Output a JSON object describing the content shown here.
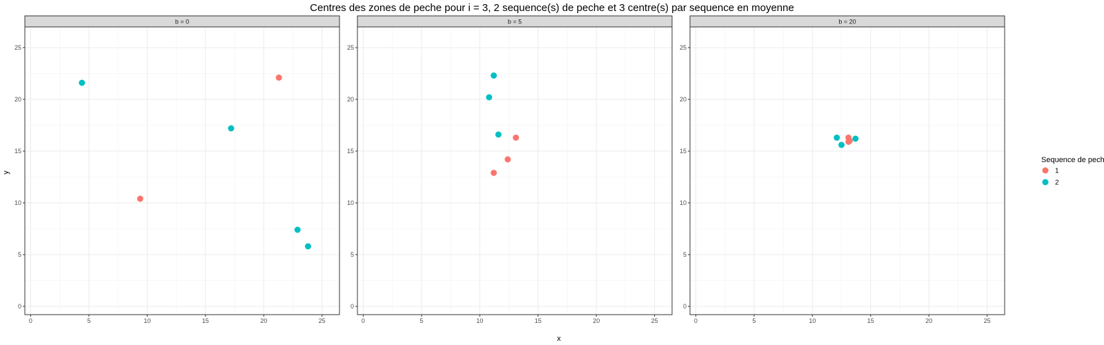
{
  "chart_data": {
    "type": "scatter",
    "title": "Centres des zones de peche pour i = 3, 2 sequence(s) de peche et 3 centre(s) par sequence en moyenne",
    "xlabel": "x",
    "ylabel": "y",
    "xlim": [
      -0.5,
      26.5
    ],
    "ylim": [
      -0.8,
      27
    ],
    "x_ticks": [
      0,
      5,
      10,
      15,
      20,
      25
    ],
    "y_ticks": [
      0,
      5,
      10,
      15,
      20,
      25
    ],
    "grid": true,
    "legend": {
      "title": "Sequence de peche",
      "position": "right",
      "entries": [
        {
          "label": "1",
          "color": "#F8766D"
        },
        {
          "label": "2",
          "color": "#00BFC4"
        }
      ]
    },
    "panels": [
      {
        "strip": "b = 0",
        "series": [
          {
            "name": "1",
            "color": "#F8766D",
            "points": [
              [
                9.4,
                10.4
              ],
              [
                21.3,
                22.1
              ]
            ]
          },
          {
            "name": "2",
            "color": "#00BFC4",
            "points": [
              [
                4.4,
                21.6
              ],
              [
                17.2,
                17.2
              ],
              [
                22.9,
                7.4
              ],
              [
                23.8,
                5.8
              ]
            ]
          }
        ]
      },
      {
        "strip": "b = 5",
        "series": [
          {
            "name": "1",
            "color": "#F8766D",
            "points": [
              [
                13.1,
                16.3
              ],
              [
                12.4,
                14.2
              ],
              [
                11.2,
                12.9
              ]
            ]
          },
          {
            "name": "2",
            "color": "#00BFC4",
            "points": [
              [
                11.2,
                22.3
              ],
              [
                10.8,
                20.2
              ],
              [
                11.6,
                16.6
              ]
            ]
          }
        ]
      },
      {
        "strip": "b = 20",
        "series": [
          {
            "name": "1",
            "color": "#F8766D",
            "points": [
              [
                13.1,
                16.3
              ],
              [
                13.2,
                16.0
              ],
              [
                13.1,
                15.9
              ]
            ]
          },
          {
            "name": "2",
            "color": "#00BFC4",
            "points": [
              [
                12.1,
                16.3
              ],
              [
                12.5,
                15.6
              ],
              [
                13.7,
                16.2
              ]
            ]
          }
        ]
      }
    ]
  }
}
